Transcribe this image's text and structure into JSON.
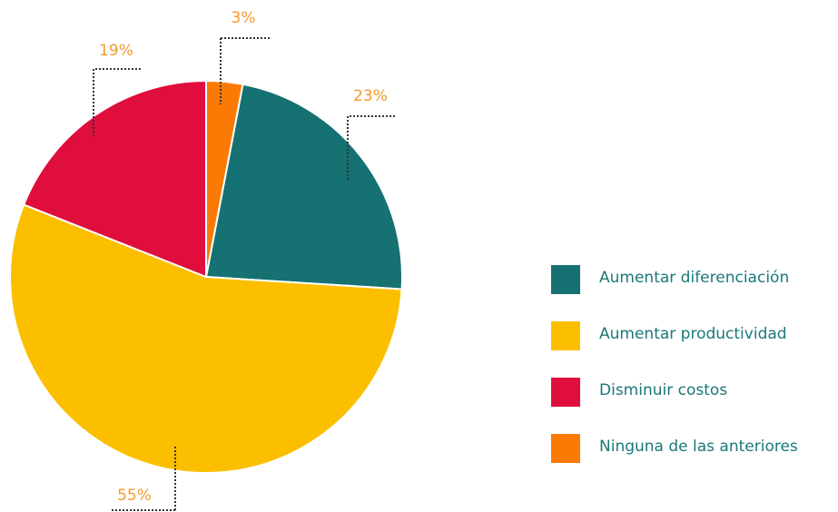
{
  "chart_data": {
    "type": "pie",
    "categories": [
      "Aumentar diferenciación",
      "Aumentar productividad",
      "Disminuir costos",
      "Ninguna de las anteriores"
    ],
    "values": [
      23,
      55,
      19,
      3
    ],
    "value_labels": [
      "23%",
      "55%",
      "19%",
      "3%"
    ],
    "colors": [
      "#167173",
      "#fbbf00",
      "#e00e3d",
      "#fb7a05"
    ],
    "legend": "right"
  }
}
